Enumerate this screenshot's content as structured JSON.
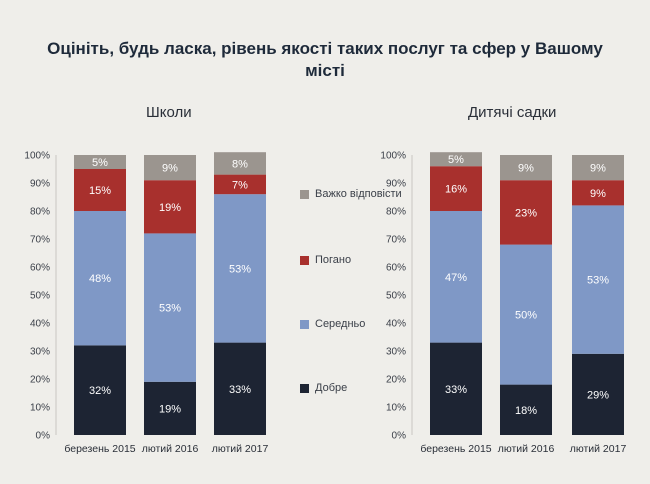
{
  "title": "Оцініть, будь ласка, рівень якості таких послуг та сфер у Вашому місті",
  "colors": {
    "Добре": "#1d2433",
    "Середньо": "#7f98c6",
    "Погано": "#a8302d",
    "Важко відповісти": "#9b958f"
  },
  "legend": [
    {
      "label": "Важко відповісти",
      "color": "#9b958f"
    },
    {
      "label": "Погано",
      "color": "#a8302d"
    },
    {
      "label": "Середньо",
      "color": "#7f98c6"
    },
    {
      "label": "Добре",
      "color": "#1d2433"
    }
  ],
  "chart_data": [
    {
      "type": "bar",
      "stacked": true,
      "title": "Школи",
      "categories": [
        "березень 2015",
        "лютий 2016",
        "лютий 2017"
      ],
      "ylim": [
        0,
        100
      ],
      "yticks": [
        "0%",
        "10%",
        "20%",
        "30%",
        "40%",
        "50%",
        "60%",
        "70%",
        "80%",
        "90%",
        "100%"
      ],
      "series": [
        {
          "name": "Добре",
          "values": [
            32,
            19,
            33
          ],
          "labels": [
            "32%",
            "19%",
            "33%"
          ]
        },
        {
          "name": "Середньо",
          "values": [
            48,
            53,
            53
          ],
          "labels": [
            "48%",
            "53%",
            "53%"
          ]
        },
        {
          "name": "Погано",
          "values": [
            15,
            19,
            7
          ],
          "labels": [
            "15%",
            "19%",
            "7%"
          ]
        },
        {
          "name": "Важко відповісти",
          "values": [
            5,
            9,
            8
          ],
          "labels": [
            "5%",
            "9%",
            "8%"
          ]
        }
      ]
    },
    {
      "type": "bar",
      "stacked": true,
      "title": "Дитячі садки",
      "categories": [
        "березень 2015",
        "лютий 2016",
        "лютий 2017"
      ],
      "ylim": [
        0,
        100
      ],
      "yticks": [
        "0%",
        "10%",
        "20%",
        "30%",
        "40%",
        "50%",
        "60%",
        "70%",
        "80%",
        "90%",
        "100%"
      ],
      "series": [
        {
          "name": "Добре",
          "values": [
            33,
            18,
            29
          ],
          "labels": [
            "33%",
            "18%",
            "29%"
          ]
        },
        {
          "name": "Середньо",
          "values": [
            47,
            50,
            53
          ],
          "labels": [
            "47%",
            "50%",
            "53%"
          ]
        },
        {
          "name": "Погано",
          "values": [
            16,
            23,
            9
          ],
          "labels": [
            "16%",
            "23%",
            "9%"
          ]
        },
        {
          "name": "Важко відповісти",
          "values": [
            5,
            9,
            9
          ],
          "labels": [
            "5%",
            "9%",
            "9%"
          ]
        }
      ]
    }
  ]
}
